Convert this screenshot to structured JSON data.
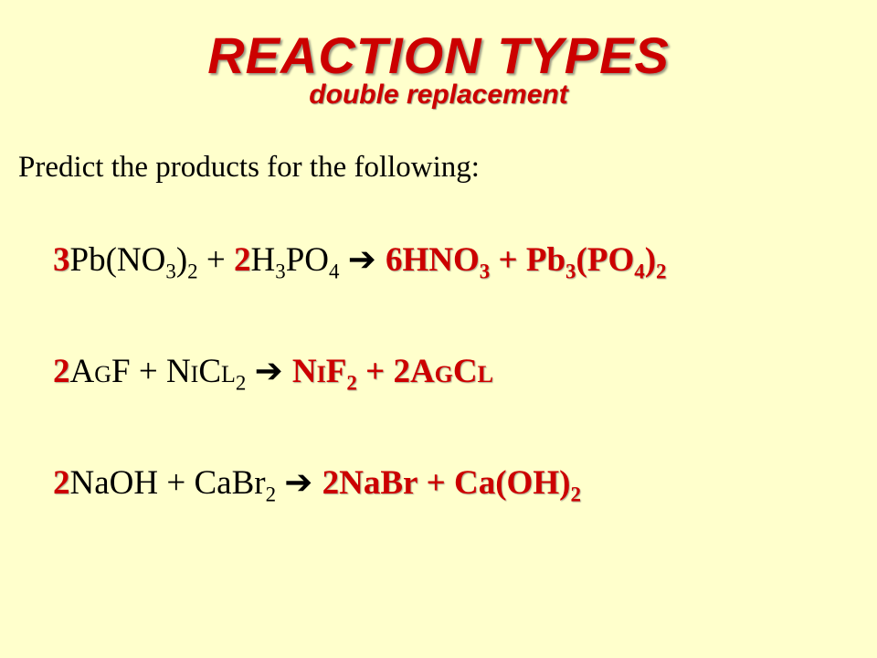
{
  "colors": {
    "background": "#ffffcc",
    "accent": "#cc0000",
    "body_text": "#000000"
  },
  "typography": {
    "title_font": "Comic Sans MS",
    "title_size_pt": 42,
    "subtitle_size_pt": 22,
    "body_font": "Georgia",
    "body_size_pt": 25,
    "equation_size_pt": 28
  },
  "title": {
    "main": "REACTION TYPES",
    "sub": "double replacement"
  },
  "prompt": "Predict the products for the following:",
  "equations": [
    {
      "reactants": [
        {
          "coef": "3",
          "formula": "Pb(NO3)2",
          "display": "Pb(NO",
          "sub1": "3",
          "mid": ")",
          "sub2": "2"
        },
        {
          "coef": "2",
          "formula": "H3PO4",
          "display": "H",
          "sub1": "3",
          "mid": "PO",
          "sub2": "4"
        }
      ],
      "products": [
        {
          "coef": "6",
          "formula": "HNO3",
          "display": "HNO",
          "sub1": "3"
        },
        {
          "coef": "",
          "formula": "Pb3(PO4)2",
          "display": "Pb",
          "sub1": "3",
          "mid": "(PO",
          "sub2": "4",
          "end": ")",
          "sub3": "2"
        }
      ]
    },
    {
      "reactants": [
        {
          "coef": "2",
          "formula": "AgF",
          "display": "AgF"
        },
        {
          "coef": "",
          "formula": "NiCl2",
          "display": "NiCl",
          "sub1": "2"
        }
      ],
      "products": [
        {
          "coef": "",
          "formula": "NiF2",
          "display": "NiF",
          "sub1": "2"
        },
        {
          "coef": "2",
          "formula": "AgCl",
          "display": "AgCl"
        }
      ]
    },
    {
      "reactants": [
        {
          "coef": "2",
          "formula": "NaOH",
          "display": "NaOH"
        },
        {
          "coef": "",
          "formula": "CaBr2",
          "display": "CaBr",
          "sub1": "2"
        }
      ],
      "products": [
        {
          "coef": "2",
          "formula": "NaBr",
          "display": "NaBr"
        },
        {
          "coef": "",
          "formula": "Ca(OH)2",
          "display": "Ca(OH)",
          "sub1": "2"
        }
      ]
    }
  ]
}
